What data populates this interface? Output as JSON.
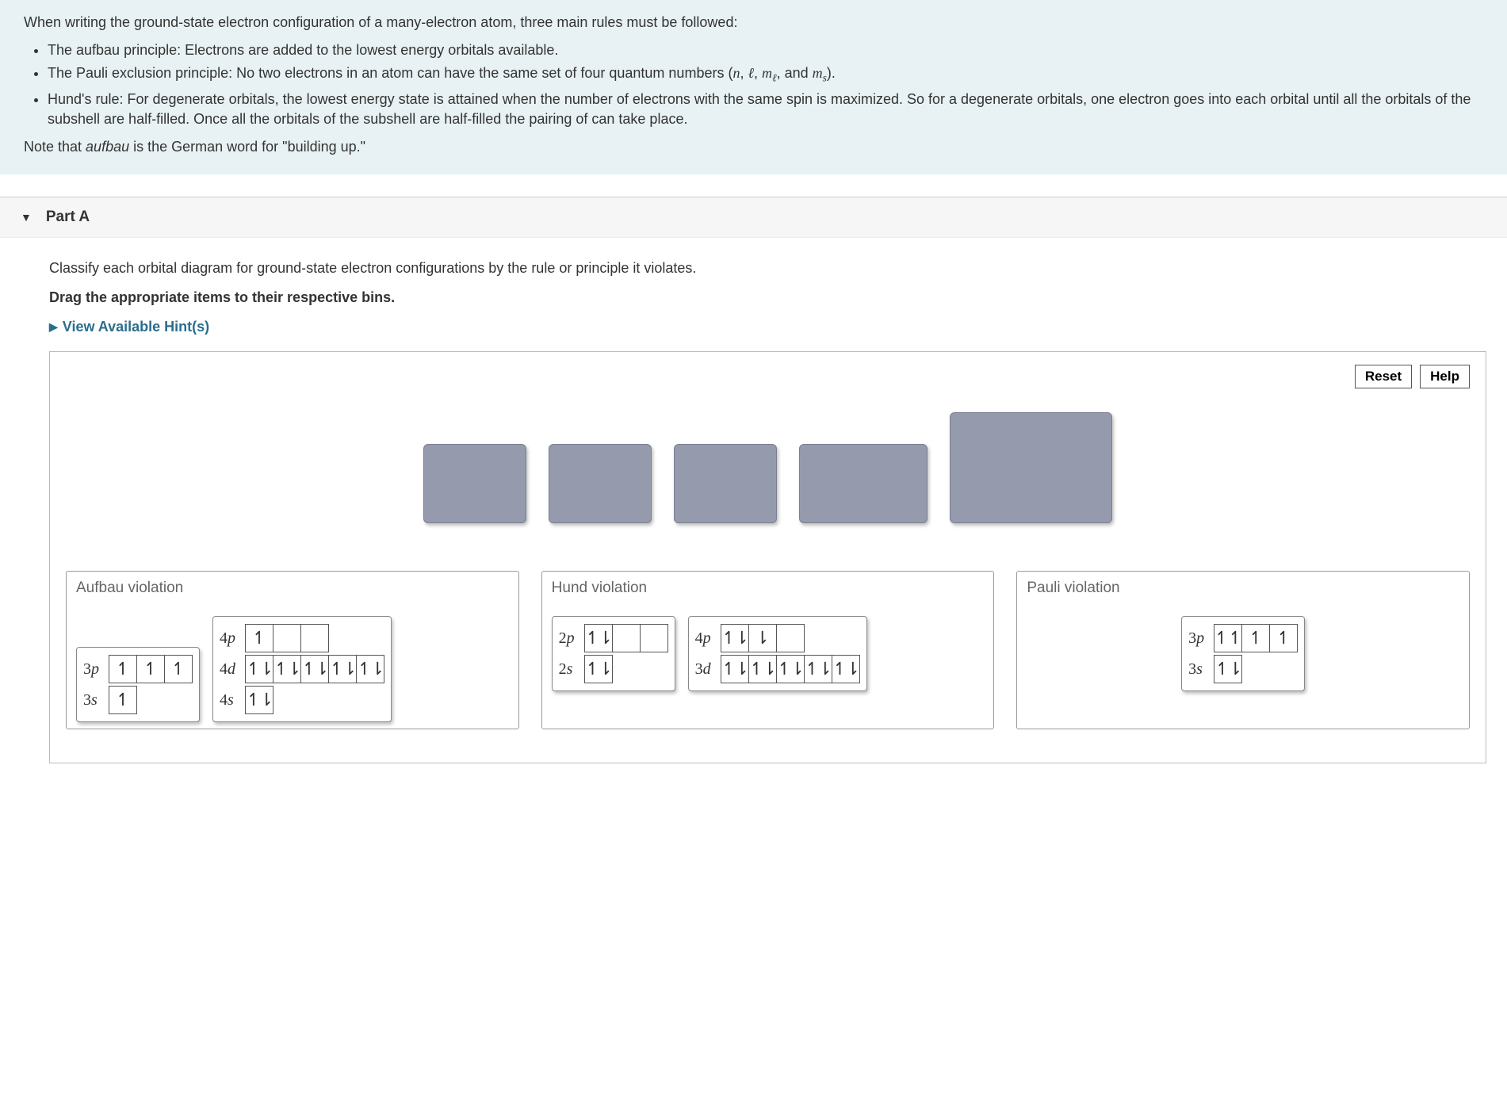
{
  "intro": {
    "lead": "When writing the ground-state electron configuration of a many-electron atom, three main rules must be followed:",
    "aufbau_label": "The aufbau principle:",
    "aufbau_text": " Electrons are added to the lowest energy orbitals available.",
    "pauli_label": "The Pauli exclusion principle:",
    "pauli_text_a": "  No two electrons in an atom can have the same set of four quantum numbers (",
    "pauli_text_b": ", and ",
    "pauli_text_c": ").",
    "hund_label": "Hund's rule:",
    "hund_text": " For degenerate orbitals, the lowest energy state is attained when the number of electrons with the same spin is maximized. So for a degenerate orbitals, one electron goes into each orbital until all the orbitals of the subshell are half-filled. Once all the orbitals of the subshell are half-filled the pairing of can take place.",
    "note_a": "Note that ",
    "note_b": "aufbau",
    "note_c": " is the German word for \"building up.\""
  },
  "quantum": {
    "n": "n",
    "l": "ℓ",
    "ml_base": "m",
    "ml_sub": "ℓ",
    "ms_base": "m",
    "ms_sub": "s"
  },
  "part": {
    "label": "Part A",
    "question": "Classify each orbital diagram for ground-state electron configurations by the rule or principle it violates.",
    "instruction": "Drag the appropriate items to their respective bins.",
    "hints": "View Available Hint(s)"
  },
  "buttons": {
    "reset": "Reset",
    "help": "Help"
  },
  "bins": {
    "aufbau": "Aufbau violation",
    "hund": "Hund violation",
    "pauli": "Pauli violation"
  },
  "diagrams": {
    "aufbau1": {
      "rows": [
        {
          "label_n": "3",
          "label_l": "p",
          "cells": [
            "up",
            "up",
            "up"
          ]
        },
        {
          "label_n": "3",
          "label_l": "s",
          "cells": [
            "up"
          ]
        }
      ]
    },
    "aufbau2": {
      "rows": [
        {
          "label_n": "4",
          "label_l": "p",
          "cells": [
            "up",
            "",
            ""
          ]
        },
        {
          "label_n": "4",
          "label_l": "d",
          "cells": [
            "pair",
            "pair",
            "pair",
            "pair",
            "pair"
          ]
        },
        {
          "label_n": "4",
          "label_l": "s",
          "cells": [
            "pair"
          ]
        }
      ]
    },
    "hund1": {
      "rows": [
        {
          "label_n": "2",
          "label_l": "p",
          "cells": [
            "pair",
            "",
            ""
          ]
        },
        {
          "label_n": "2",
          "label_l": "s",
          "cells": [
            "pair"
          ]
        }
      ]
    },
    "hund2": {
      "rows": [
        {
          "label_n": "4",
          "label_l": "p",
          "cells": [
            "pair",
            "down",
            ""
          ]
        },
        {
          "label_n": "3",
          "label_l": "d",
          "cells": [
            "pair",
            "pair",
            "pair",
            "pair",
            "pair"
          ]
        }
      ]
    },
    "pauli1": {
      "rows": [
        {
          "label_n": "3",
          "label_l": "p",
          "cells": [
            "upup",
            "up",
            "up"
          ]
        },
        {
          "label_n": "3",
          "label_l": "s",
          "cells": [
            "pair"
          ]
        }
      ]
    }
  },
  "colors": {
    "intro_bg": "#e8f2f4",
    "card_bg": "#959aad",
    "link": "#2a6e8e"
  }
}
